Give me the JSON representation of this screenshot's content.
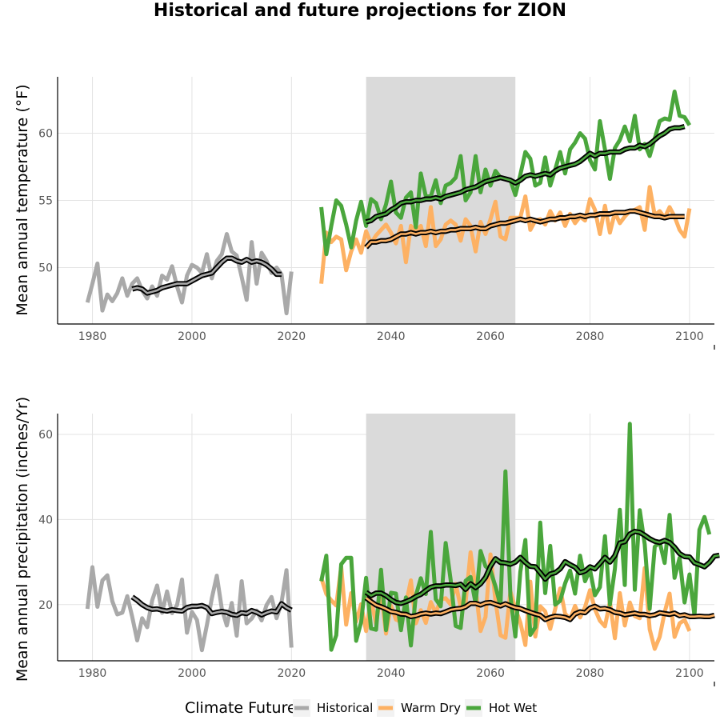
{
  "colors": {
    "historical": "#a9a9a9",
    "warm_dry": "#fdb163",
    "hot_wet": "#4aa63c",
    "band": "#dadada",
    "mean_line": "#000000"
  },
  "chart_data": {
    "title": "Historical and future projections for ZION",
    "type": "line",
    "reference_period": [
      2035,
      2065
    ],
    "legend": {
      "title": "Climate Future",
      "placement": "bottom",
      "entries": [
        "Historical",
        "Warm Dry",
        "Hot Wet"
      ]
    },
    "panels": [
      {
        "id": "temperature",
        "ylabel": "Mean annual temperature (°F)",
        "xlim": [
          1973,
          2105
        ],
        "ylim": [
          45.8,
          64.2
        ],
        "xticks": [
          1980,
          2000,
          2020,
          2040,
          2060,
          2080,
          2100
        ],
        "yticks": [
          50,
          55,
          60
        ],
        "grid": true,
        "series": [
          {
            "name": "Historical",
            "x_start": 1979,
            "values": [
              47.4,
              48.8,
              50.3,
              46.8,
              48.0,
              47.5,
              48.1,
              49.2,
              47.9,
              48.8,
              49.2,
              48.3,
              47.7,
              48.6,
              47.9,
              49.4,
              49.1,
              50.1,
              48.6,
              47.4,
              49.4,
              50.2,
              50.0,
              49.6,
              51.0,
              49.2,
              50.5,
              51.0,
              52.5,
              51.2,
              50.9,
              49.3,
              47.6,
              51.9,
              48.8,
              51.1,
              50.5,
              49.6,
              50.0,
              49.5,
              46.6,
              49.7
            ]
          },
          {
            "name": "Historical 10-yr mean",
            "x_start": 1988,
            "values": [
              48.4,
              48.5,
              48.4,
              48.1,
              48.2,
              48.3,
              48.5,
              48.6,
              48.7,
              48.8,
              48.8,
              48.8,
              49.0,
              49.2,
              49.4,
              49.5,
              49.6,
              50.0,
              50.4,
              50.7,
              50.7,
              50.5,
              50.4,
              50.6,
              50.4,
              50.5,
              50.4,
              50.2,
              49.9,
              49.5,
              49.5
            ]
          },
          {
            "name": "Warm Dry",
            "x_start": 2026,
            "values": [
              48.8,
              52.6,
              51.9,
              52.3,
              52.1,
              49.8,
              51.2,
              52.1,
              51.1,
              52.7,
              51.8,
              52.4,
              52.8,
              53.2,
              52.6,
              51.8,
              53.1,
              50.4,
              53.1,
              52.7,
              53.1,
              51.6,
              54.5,
              51.6,
              52.1,
              53.2,
              53.5,
              53.2,
              52.0,
              53.6,
              53.1,
              51.2,
              53.4,
              52.5,
              53.6,
              54.9,
              52.3,
              52.1,
              53.7,
              53.7,
              53.7,
              55.3,
              52.8,
              53.5,
              53.6,
              53.2,
              54.2,
              53.5,
              54.1,
              53.1,
              54.0,
              53.3,
              53.8,
              53.5,
              55.1,
              54.3,
              52.5,
              54.6,
              52.6,
              54.1,
              53.3,
              53.8,
              54.2,
              54.3,
              54.5,
              52.8,
              56.0,
              53.9,
              54.2,
              53.7,
              54.5,
              53.8,
              52.8,
              52.3,
              54.4
            ]
          },
          {
            "name": "Warm Dry 10-yr mean",
            "x_start": 2035,
            "values": [
              51.5,
              51.9,
              51.9,
              52.0,
              52.0,
              52.1,
              52.3,
              52.5,
              52.5,
              52.6,
              52.5,
              52.6,
              52.6,
              52.7,
              52.6,
              52.7,
              52.7,
              52.8,
              52.8,
              52.9,
              52.9,
              52.9,
              53.0,
              52.9,
              52.9,
              53.1,
              53.2,
              53.3,
              53.3,
              53.4,
              53.5,
              53.6,
              53.5,
              53.6,
              53.5,
              53.4,
              53.5,
              53.6,
              53.6,
              53.7,
              53.7,
              53.8,
              53.8,
              53.9,
              53.8,
              53.9,
              53.9,
              54.0,
              54.0,
              54.0,
              54.1,
              54.1,
              54.1,
              54.2,
              54.2,
              54.1,
              54.0,
              53.9,
              53.8,
              53.8,
              53.7,
              53.8,
              53.8,
              53.8,
              53.8
            ]
          },
          {
            "name": "Hot Wet",
            "x_start": 2026,
            "values": [
              54.5,
              51.0,
              53.1,
              55.0,
              54.6,
              53.2,
              51.5,
              53.5,
              54.9,
              53.1,
              55.1,
              54.8,
              53.6,
              54.7,
              56.4,
              54.1,
              53.7,
              55.2,
              55.6,
              53.0,
              57.0,
              55.3,
              55.3,
              56.5,
              54.8,
              56.1,
              56.3,
              56.7,
              58.3,
              55.0,
              55.6,
              58.3,
              55.6,
              57.3,
              56.1,
              57.2,
              56.7,
              56.6,
              56.5,
              55.4,
              56.9,
              58.6,
              58.1,
              56.1,
              56.3,
              58.2,
              56.1,
              57.3,
              58.6,
              57.0,
              58.8,
              59.3,
              60.0,
              59.6,
              58.0,
              57.3,
              60.9,
              58.8,
              56.6,
              58.9,
              59.5,
              60.5,
              59.4,
              61.3,
              58.8,
              59.2,
              58.3,
              59.6,
              60.9,
              61.1,
              61.0,
              63.1,
              61.3,
              61.2,
              60.6
            ]
          },
          {
            "name": "Hot Wet 10-yr mean",
            "x_start": 2035,
            "values": [
              53.4,
              53.5,
              53.8,
              53.9,
              54.0,
              54.3,
              54.5,
              54.8,
              54.9,
              54.9,
              55.0,
              55.0,
              55.1,
              55.1,
              55.2,
              55.1,
              55.3,
              55.4,
              55.5,
              55.6,
              55.8,
              55.9,
              56.0,
              56.2,
              56.4,
              56.5,
              56.6,
              56.7,
              56.6,
              56.5,
              56.3,
              56.5,
              56.8,
              56.9,
              56.8,
              56.9,
              57.0,
              56.9,
              57.2,
              57.4,
              57.5,
              57.6,
              57.7,
              57.9,
              58.2,
              58.5,
              58.3,
              58.5,
              58.5,
              58.6,
              58.6,
              58.6,
              58.8,
              58.9,
              58.9,
              59.1,
              59.0,
              59.2,
              59.5,
              59.8,
              60.0,
              60.3,
              60.4,
              60.4,
              60.5
            ]
          }
        ]
      },
      {
        "id": "precipitation",
        "ylabel": "Mean annual precipitation (inches/Yr)",
        "xlim": [
          1973,
          2105
        ],
        "ylim": [
          6.8,
          64.9
        ],
        "xticks": [
          1980,
          2000,
          2020,
          2040,
          2060,
          2080,
          2100
        ],
        "yticks": [
          20,
          40,
          60
        ],
        "grid": true,
        "series": [
          {
            "name": "Historical",
            "x_start": 1979,
            "values": [
              19.0,
              28.8,
              19.5,
              25.7,
              26.9,
              20.8,
              17.7,
              18.1,
              22.0,
              17.1,
              11.6,
              16.8,
              14.7,
              21.0,
              24.5,
              18.1,
              23.1,
              18.0,
              19.9,
              25.9,
              13.4,
              18.3,
              16.4,
              9.3,
              15.2,
              21.5,
              26.8,
              19.0,
              15.1,
              20.4,
              12.7,
              25.5,
              15.6,
              16.7,
              18.6,
              16.3,
              19.9,
              21.8,
              16.8,
              20.5,
              28.1,
              9.9
            ]
          },
          {
            "name": "Historical 10-yr mean",
            "x_start": 1988,
            "values": [
              21.8,
              21.0,
              20.0,
              19.3,
              18.9,
              19.0,
              18.7,
              18.5,
              18.8,
              18.6,
              18.5,
              19.3,
              19.6,
              19.6,
              19.8,
              19.3,
              17.9,
              18.2,
              18.4,
              18.2,
              17.7,
              17.5,
              18.1,
              17.9,
              18.6,
              18.2,
              17.6,
              18.1,
              18.5,
              18.3,
              20.2,
              19.3,
              18.7
            ]
          },
          {
            "name": "Warm Dry",
            "x_start": 2026,
            "values": [
              26.3,
              22.5,
              21.0,
              19.8,
              28.9,
              15.3,
              22.7,
              16.0,
              20.1,
              13.8,
              21.1,
              15.5,
              23.1,
              13.2,
              19.8,
              16.5,
              16.0,
              20.1,
              25.7,
              15.6,
              18.7,
              15.7,
              20.6,
              18.0,
              21.2,
              21.5,
              20.0,
              24.9,
              19.5,
              20.5,
              32.3,
              23.8,
              13.8,
              17.1,
              31.8,
              21.0,
              12.8,
              12.2,
              23.1,
              19.1,
              15.8,
              10.5,
              25.4,
              12.5,
              19.6,
              18.4,
              14.3,
              19.0,
              23.8,
              17.9,
              16.6,
              19.7,
              17.0,
              19.4,
              23.4,
              18.9,
              16.2,
              14.9,
              20.7,
              12.1,
              22.7,
              15.1,
              20.5,
              17.3,
              16.8,
              28.6,
              14.2,
              9.6,
              12.4,
              18.2,
              22.6,
              12.4,
              15.6,
              16.4,
              13.8
            ]
          },
          {
            "name": "Warm Dry 10-yr mean",
            "x_start": 2035,
            "values": [
              21.6,
              20.7,
              19.9,
              19.5,
              19.0,
              18.4,
              18.2,
              17.8,
              17.7,
              17.2,
              17.4,
              17.8,
              18.0,
              17.8,
              18.0,
              17.9,
              18.3,
              18.8,
              19.0,
              19.1,
              19.5,
              20.3,
              20.3,
              19.9,
              20.4,
              20.5,
              20.1,
              19.7,
              20.2,
              19.7,
              19.3,
              19.1,
              18.6,
              18.2,
              17.8,
              17.5,
              16.5,
              17.0,
              17.3,
              17.2,
              17.0,
              16.5,
              17.8,
              18.3,
              18.1,
              19.2,
              19.6,
              19.0,
              19.1,
              18.8,
              18.2,
              18.0,
              17.6,
              17.8,
              18.0,
              17.7,
              17.7,
              17.4,
              17.6,
              18.1,
              17.9,
              17.7,
              18.0,
              17.4,
              17.6,
              17.2,
              17.2,
              17.3,
              17.2,
              17.2,
              17.5
            ]
          },
          {
            "name": "Hot Wet",
            "x_start": 2026,
            "values": [
              25.5,
              31.5,
              9.4,
              12.8,
              29.5,
              31.0,
              31.0,
              11.5,
              15.9,
              26.3,
              14.4,
              14.1,
              28.2,
              14.0,
              22.8,
              22.6,
              14.0,
              21.7,
              10.4,
              22.1,
              26.2,
              22.5,
              37.1,
              21.3,
              19.6,
              34.5,
              25.7,
              15.0,
              14.5,
              25.6,
              26.5,
              20.3,
              32.6,
              29.0,
              28.0,
              24.3,
              19.8,
              51.3,
              22.1,
              12.5,
              27.7,
              35.2,
              12.9,
              14.7,
              39.3,
              22.7,
              33.8,
              20.0,
              20.9,
              25.0,
              28.0,
              22.6,
              31.5,
              25.5,
              28.2,
              22.2,
              24.1,
              36.1,
              20.0,
              28.4,
              42.3,
              24.6,
              62.5,
              23.5,
              42.2,
              34.2,
              19.0,
              33.6,
              34.7,
              29.8,
              41.1,
              26.3,
              31.0,
              20.5,
              27.1,
              17.4,
              37.6,
              40.6,
              36.5
            ]
          },
          {
            "name": "Hot Wet 10-yr mean",
            "x_start": 2035,
            "values": [
              22.9,
              22.1,
              22.7,
              22.7,
              22.1,
              21.2,
              20.5,
              20.3,
              20.7,
              21.2,
              21.9,
              22.4,
              23.3,
              24.1,
              24.4,
              24.4,
              24.6,
              24.6,
              24.5,
              24.8,
              23.6,
              24.9,
              24.0,
              24.9,
              26.4,
              29.0,
              30.8,
              29.9,
              29.8,
              29.5,
              30.0,
              31.1,
              29.9,
              29.0,
              28.9,
              27.5,
              26.0,
              27.2,
              27.5,
              28.4,
              30.1,
              29.4,
              28.8,
              27.5,
              27.9,
              28.9,
              28.4,
              29.7,
              31.1,
              30.0,
              31.5,
              34.5,
              34.8,
              36.6,
              37.2,
              37.0,
              36.3,
              35.5,
              34.9,
              34.6,
              35.1,
              34.6,
              33.5,
              32.0,
              31.3,
              31.2,
              29.8,
              29.4,
              28.9,
              29.9,
              31.4,
              31.6
            ]
          }
        ]
      }
    ]
  }
}
